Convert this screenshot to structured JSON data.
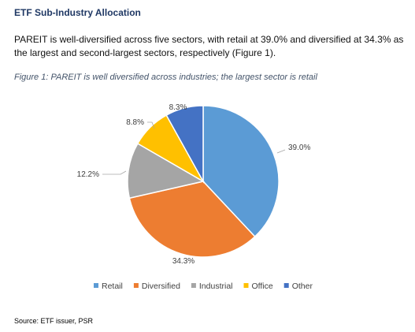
{
  "header": {
    "title": "ETF Sub-Industry Allocation"
  },
  "body_text": "PAREIT is well-diversified across five sectors, with retail at 39.0% and diversified at 34.3% as the largest and second-largest sectors, respectively (Figure 1).",
  "figure_caption": "Figure 1: PAREIT is well diversified across industries; the largest sector is retail",
  "source_note": "Source: ETF issuer, PSR",
  "chart_data": {
    "type": "pie",
    "title": "",
    "legend_position": "bottom",
    "start_angle_deg": 0,
    "direction": "clockwise",
    "slices": [
      {
        "name": "Retail",
        "value": 39.0,
        "label": "39.0%",
        "color": "#5b9bd5"
      },
      {
        "name": "Diversified",
        "value": 34.3,
        "label": "34.3%",
        "color": "#ed7d31"
      },
      {
        "name": "Industrial",
        "value": 12.2,
        "label": "12.2%",
        "color": "#a5a5a5"
      },
      {
        "name": "Office",
        "value": 8.8,
        "label": "8.8%",
        "color": "#ffc000"
      },
      {
        "name": "Other",
        "value": 8.3,
        "label": "8.3%",
        "color": "#4472c4"
      }
    ]
  }
}
